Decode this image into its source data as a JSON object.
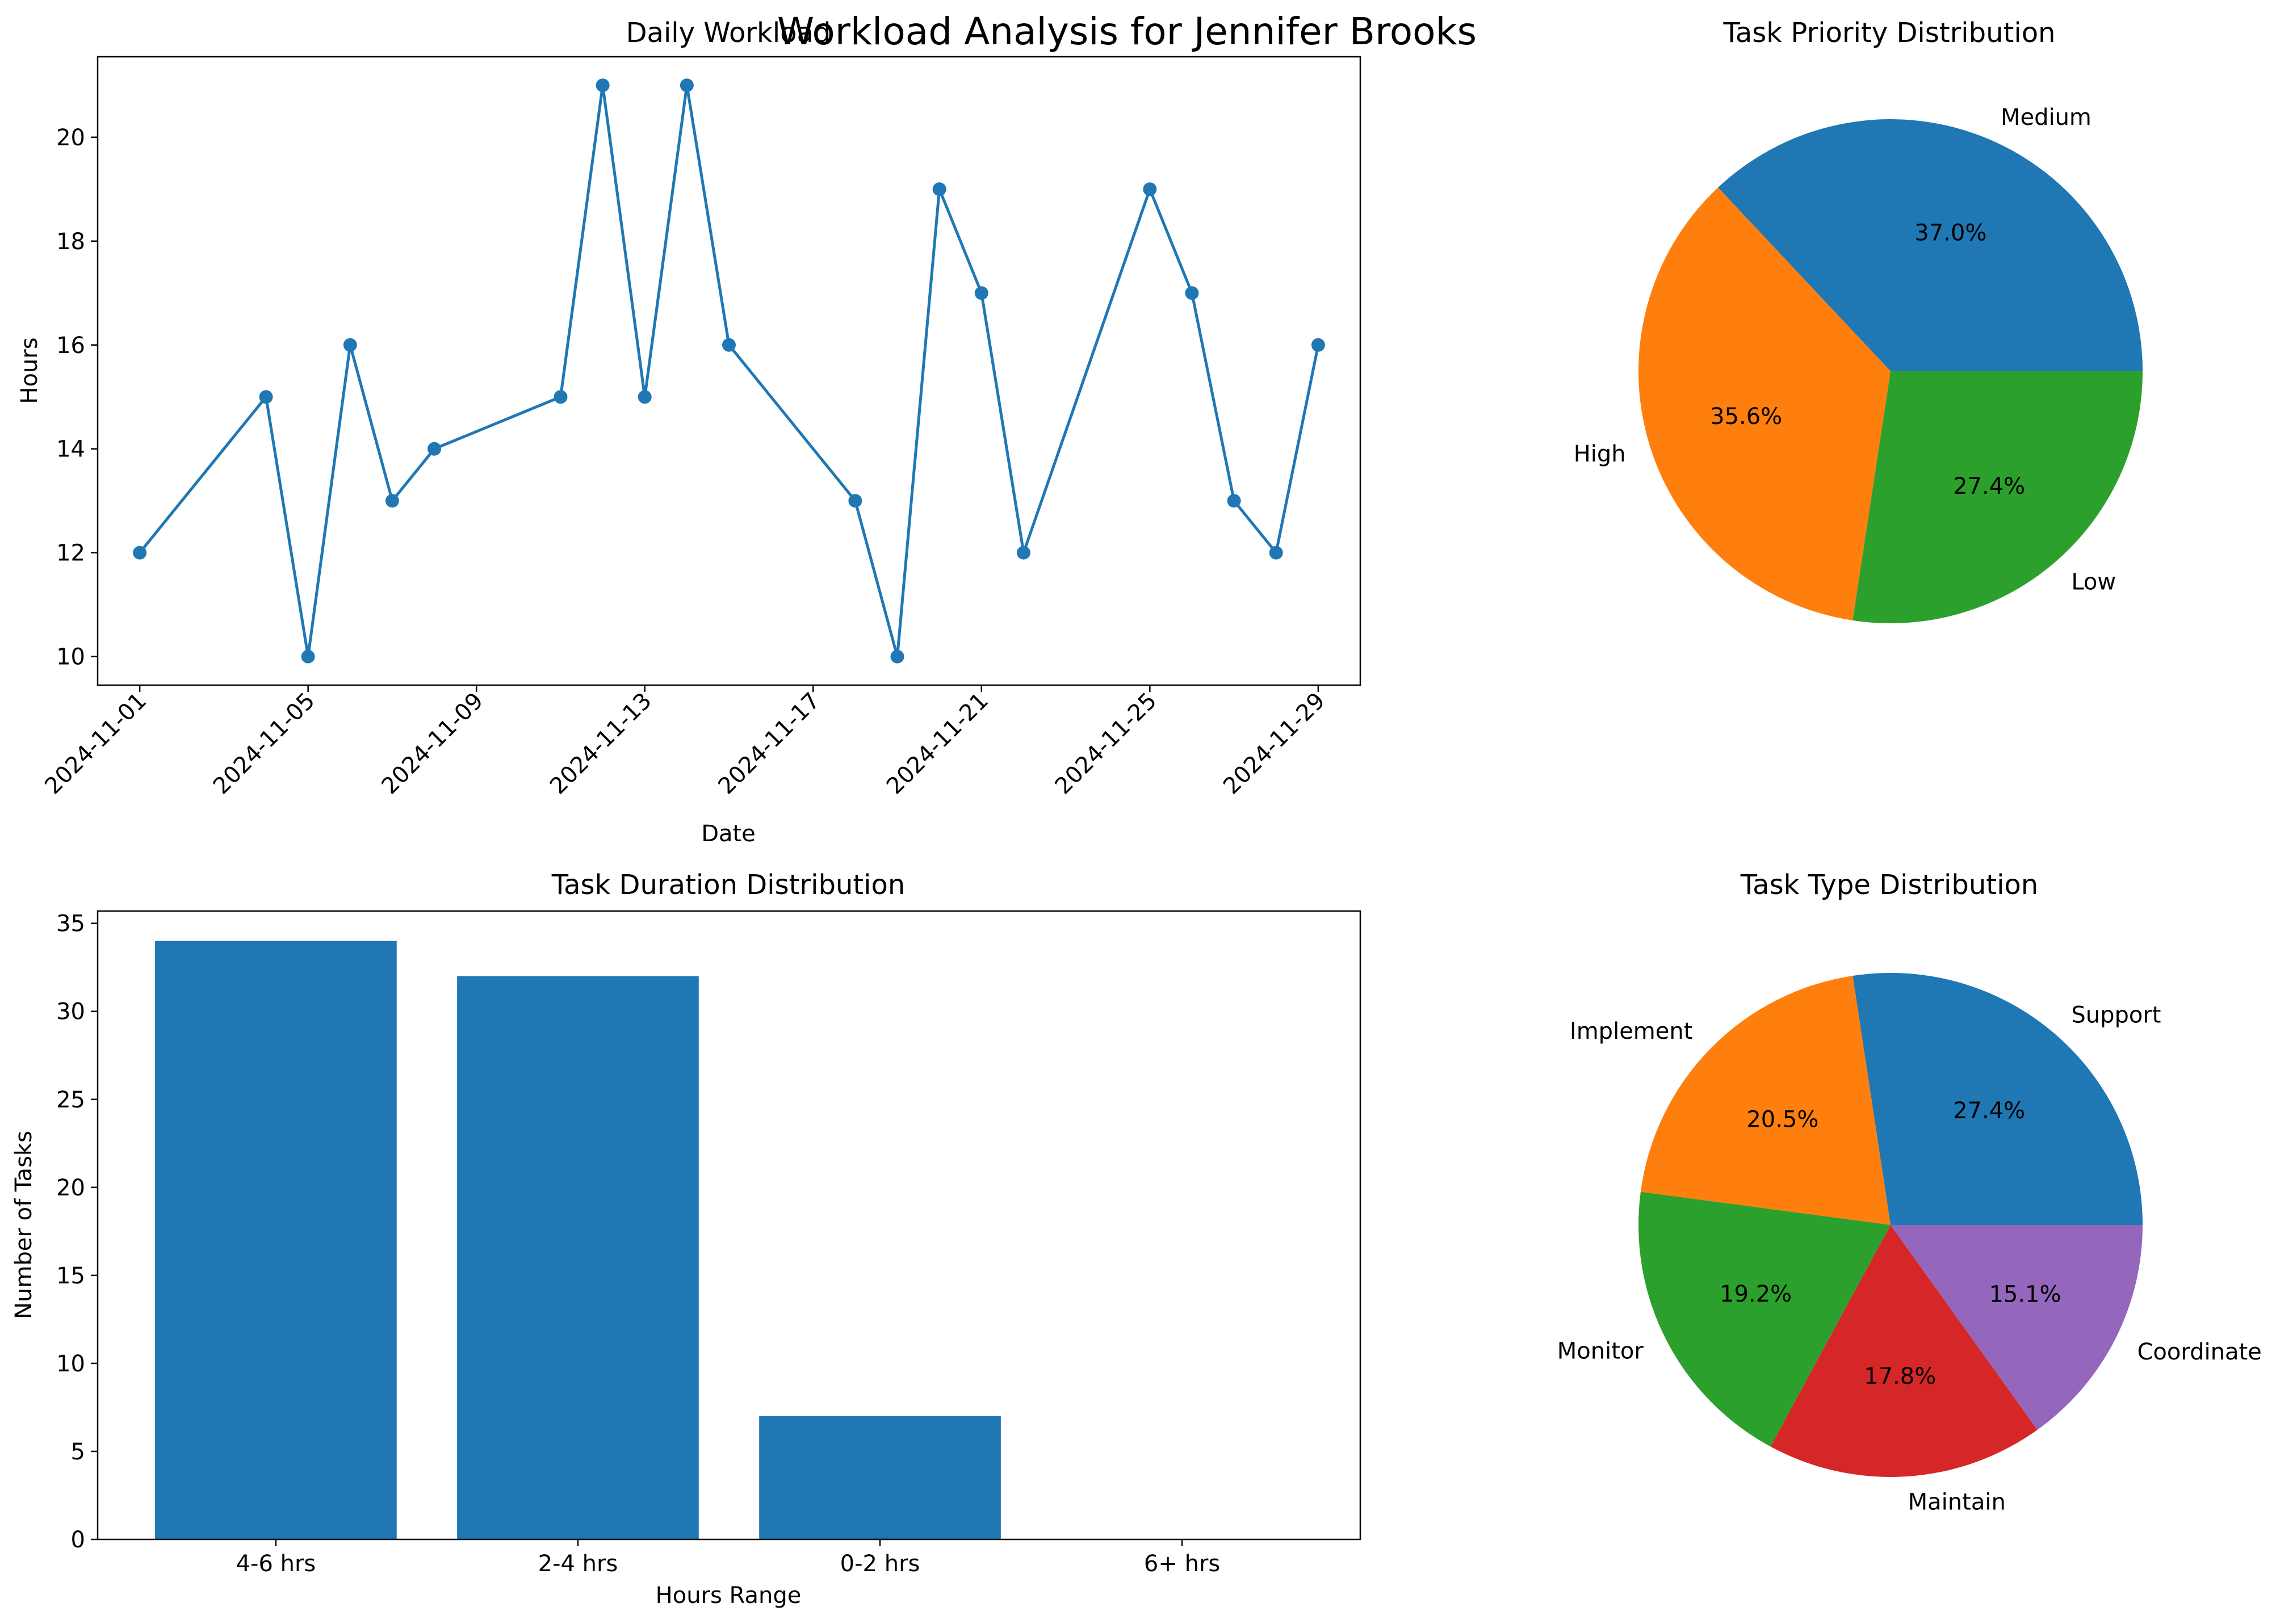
{
  "figure": {
    "suptitle": "Workload Analysis for Jennifer Brooks"
  },
  "chart_data": [
    {
      "type": "line",
      "title": "Daily Workload",
      "xlabel": "Date",
      "ylabel": "Hours",
      "marker": "circle",
      "color": "#1f77b4",
      "grid": false,
      "x": [
        "2024-11-01",
        "2024-11-04",
        "2024-11-05",
        "2024-11-06",
        "2024-11-07",
        "2024-11-08",
        "2024-11-11",
        "2024-11-12",
        "2024-11-13",
        "2024-11-14",
        "2024-11-15",
        "2024-11-18",
        "2024-11-19",
        "2024-11-20",
        "2024-11-21",
        "2024-11-22",
        "2024-11-25",
        "2024-11-26",
        "2024-11-27",
        "2024-11-28",
        "2024-11-29"
      ],
      "y": [
        12,
        15,
        10,
        16,
        13,
        14,
        15,
        21,
        15,
        21,
        16,
        13,
        10,
        19,
        17,
        12,
        19,
        17,
        13,
        12,
        16
      ],
      "xlim": [
        "2024-10-31",
        "2024-11-30"
      ],
      "ylim": [
        9.45,
        21.55
      ],
      "xticks": [
        "2024-11-01",
        "2024-11-05",
        "2024-11-09",
        "2024-11-13",
        "2024-11-17",
        "2024-11-21",
        "2024-11-25",
        "2024-11-29"
      ],
      "yticks": [
        10,
        12,
        14,
        16,
        18,
        20
      ],
      "xtick_rotation": 45
    },
    {
      "type": "pie",
      "title": "Task Priority Distribution",
      "labels": [
        "Medium",
        "High",
        "Low"
      ],
      "percent_labels": [
        "37.0%",
        "35.6%",
        "27.4%"
      ],
      "values": [
        37.0,
        35.6,
        27.4
      ],
      "colors": [
        "#1f77b4",
        "#ff7f0e",
        "#2ca02c"
      ],
      "start_angle": 0,
      "direction": "counterclockwise"
    },
    {
      "type": "bar",
      "title": "Task Duration Distribution",
      "xlabel": "Hours Range",
      "ylabel": "Number of Tasks",
      "categories": [
        "4-6 hrs",
        "2-4 hrs",
        "0-2 hrs",
        "6+ hrs"
      ],
      "values": [
        34,
        32,
        7,
        0
      ],
      "color": "#1f77b4",
      "ylim": [
        0,
        35.7
      ],
      "yticks": [
        0,
        5,
        10,
        15,
        20,
        25,
        30,
        35
      ],
      "grid": false
    },
    {
      "type": "pie",
      "title": "Task Type Distribution",
      "labels": [
        "Support",
        "Implement",
        "Monitor",
        "Maintain",
        "Coordinate"
      ],
      "percent_labels": [
        "27.4%",
        "20.5%",
        "19.2%",
        "17.8%",
        "15.1%"
      ],
      "values": [
        27.4,
        20.5,
        19.2,
        17.8,
        15.1
      ],
      "colors": [
        "#1f77b4",
        "#ff7f0e",
        "#2ca02c",
        "#d62728",
        "#9467bd"
      ],
      "start_angle": 0,
      "direction": "counterclockwise"
    }
  ]
}
